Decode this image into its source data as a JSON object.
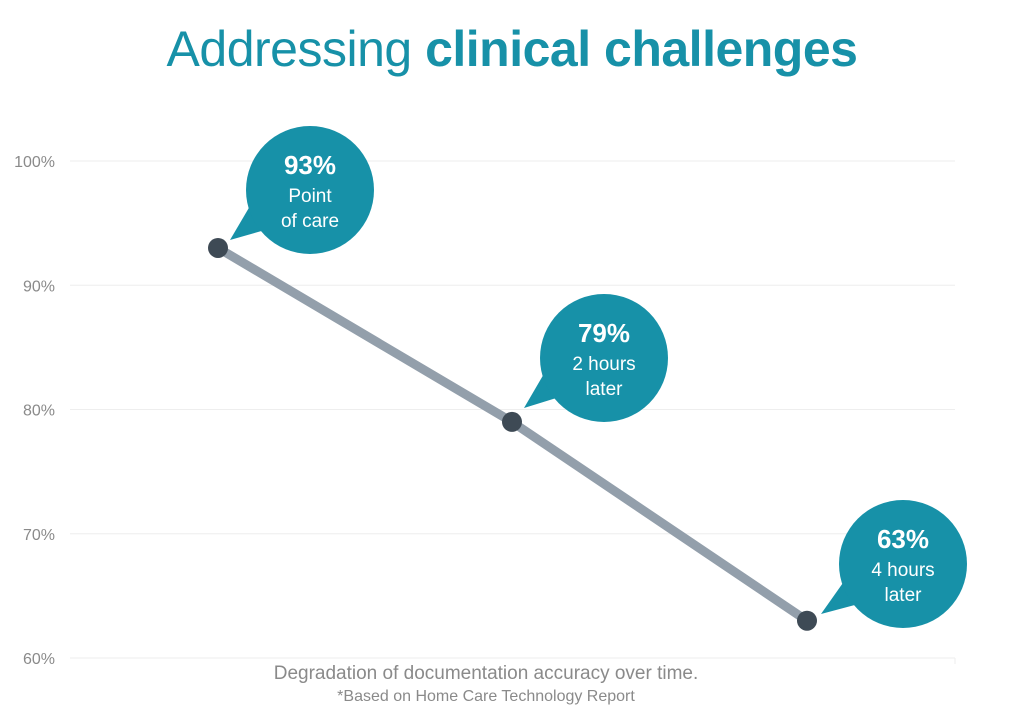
{
  "title": {
    "light": "Addressing",
    "bold": "clinical challenges"
  },
  "caption": "Degradation of documentation accuracy over time.",
  "note": "*Based on Home Care Technology Report",
  "colors": {
    "title": "#1791a8",
    "callout": "#1791a8",
    "line": "#939fab",
    "marker": "#3e4a55",
    "grid": "#eeeeee",
    "text": "#8a8a8a"
  },
  "chart_data": {
    "type": "line",
    "title": "Addressing clinical challenges",
    "xlabel": "Degradation of documentation accuracy over time.",
    "ylabel": "",
    "ylim": [
      60,
      100
    ],
    "yticks": [
      {
        "value": 100,
        "label": "100%"
      },
      {
        "value": 90,
        "label": "90%"
      },
      {
        "value": 80,
        "label": "80%"
      },
      {
        "value": 70,
        "label": "70%"
      },
      {
        "value": 60,
        "label": "60%"
      }
    ],
    "grid": true,
    "legend": "none",
    "points": [
      {
        "value": 93,
        "label": "93%",
        "lines": [
          "Point",
          "of care"
        ]
      },
      {
        "value": 79,
        "label": "79%",
        "lines": [
          "2 hours",
          "later"
        ]
      },
      {
        "value": 63,
        "label": "63%",
        "lines": [
          "4 hours",
          "later"
        ]
      }
    ]
  }
}
